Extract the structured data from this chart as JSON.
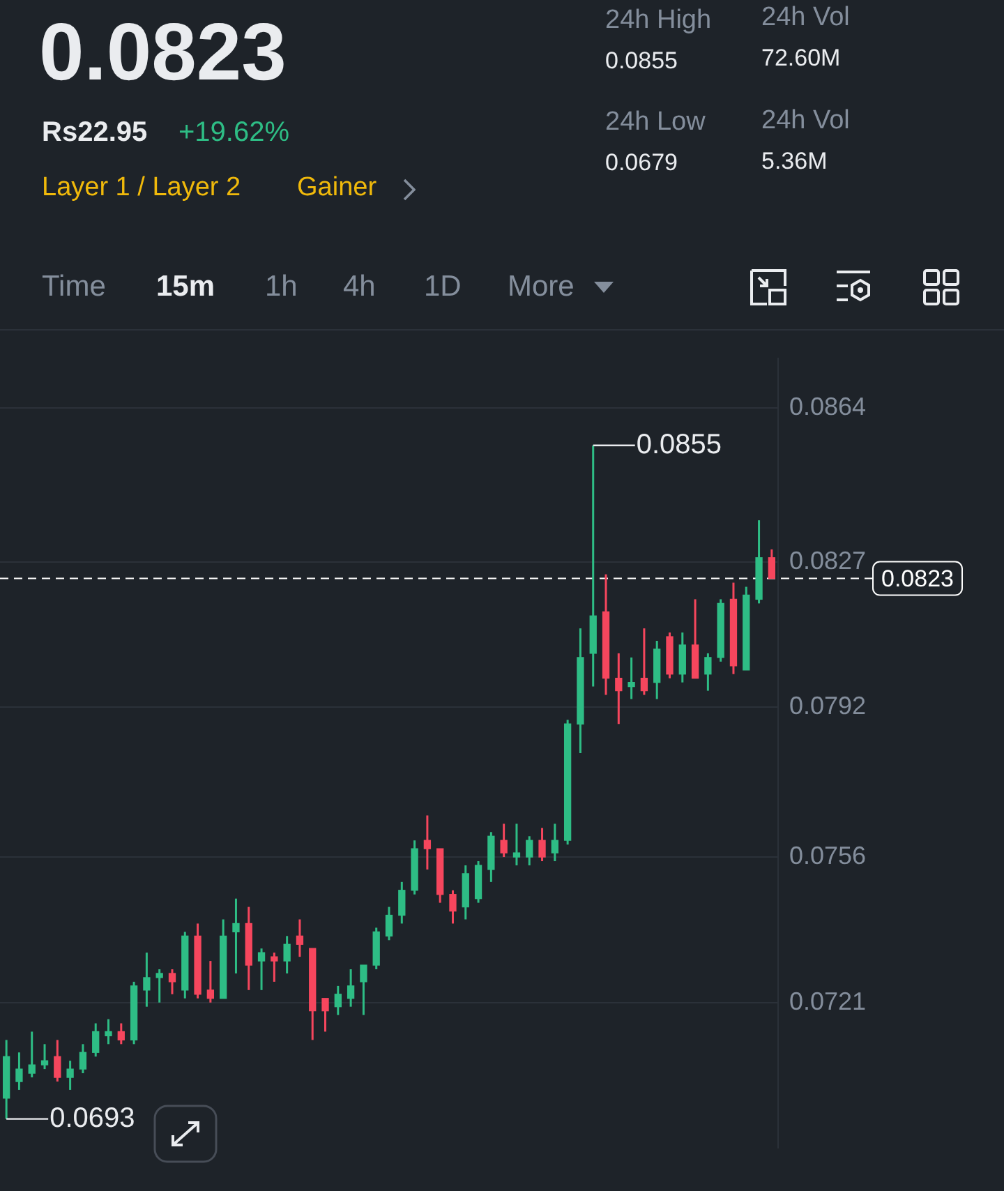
{
  "chart_data": {
    "type": "candlestick",
    "title": "0.0823",
    "subtitle": "Rs22.95",
    "annotations": [
      "+19.62%",
      "Layer 1 / Layer 2",
      "Gainer",
      "24h High",
      "0.0855",
      "24h Vol",
      "72.60M",
      "24h Low",
      "0.0679",
      "24h Vol",
      "5.36M",
      "Time",
      "15m",
      "1h",
      "4h",
      "1D",
      "More",
      "0.0855",
      "0.0693"
    ],
    "categories": [
      null,
      null,
      null,
      null,
      null,
      null,
      null,
      null,
      null,
      null,
      null,
      null,
      null,
      null,
      null,
      null,
      null,
      null,
      null,
      null,
      null,
      null,
      null,
      null,
      null,
      null,
      null,
      null,
      null,
      null,
      null,
      null,
      null,
      null,
      null,
      null,
      null,
      null,
      null,
      null,
      null,
      null,
      null,
      null,
      null,
      null,
      null,
      null,
      null,
      null,
      null,
      null,
      null,
      null,
      null,
      null,
      null,
      null,
      null,
      null,
      null
    ],
    "ohlc": [
      [
        0.0698,
        0.0712,
        0.0693,
        0.0708
      ],
      [
        0.0702,
        0.0709,
        0.07,
        0.0705
      ],
      [
        0.0704,
        0.0714,
        0.0703,
        0.0706
      ],
      [
        0.0706,
        0.0711,
        0.0705,
        0.0707
      ],
      [
        0.0708,
        0.0712,
        0.0702,
        0.0703
      ],
      [
        0.0703,
        0.0707,
        0.07,
        0.0705
      ],
      [
        0.0705,
        0.0711,
        0.0704,
        0.0709
      ],
      [
        0.0709,
        0.0716,
        0.0708,
        0.0714
      ],
      [
        0.0713,
        0.0717,
        0.0711,
        0.0714
      ],
      [
        0.0714,
        0.0716,
        0.0711,
        0.0712
      ],
      [
        0.0712,
        0.0726,
        0.0711,
        0.0725
      ],
      [
        0.0724,
        0.0733,
        0.072,
        0.0727
      ],
      [
        0.0727,
        0.0729,
        0.0721,
        0.0728
      ],
      [
        0.0728,
        0.0729,
        0.0723,
        0.0726
      ],
      [
        0.0724,
        0.0738,
        0.0722,
        0.0737
      ],
      [
        0.0737,
        0.074,
        0.0722,
        0.0723
      ],
      [
        0.0724,
        0.0731,
        0.0721,
        0.0722
      ],
      [
        0.0722,
        0.0741,
        0.0722,
        0.0737
      ],
      [
        0.0738,
        0.0746,
        0.0728,
        0.074
      ],
      [
        0.074,
        0.0744,
        0.0724,
        0.073
      ],
      [
        0.0731,
        0.0734,
        0.0724,
        0.0733
      ],
      [
        0.0732,
        0.0733,
        0.0726,
        0.0731
      ],
      [
        0.0731,
        0.0737,
        0.0728,
        0.0735
      ],
      [
        0.0737,
        0.0741,
        0.0732,
        0.0735
      ],
      [
        0.0734,
        0.0734,
        0.0712,
        0.0719
      ],
      [
        0.0722,
        0.0722,
        0.0714,
        0.0719
      ],
      [
        0.072,
        0.0725,
        0.0718,
        0.0723
      ],
      [
        0.0722,
        0.0729,
        0.072,
        0.0725
      ],
      [
        0.0726,
        0.073,
        0.0718,
        0.073
      ],
      [
        0.073,
        0.0739,
        0.0729,
        0.0738
      ],
      [
        0.0737,
        0.0744,
        0.0736,
        0.0742
      ],
      [
        0.0742,
        0.075,
        0.074,
        0.0748
      ],
      [
        0.0748,
        0.076,
        0.0747,
        0.0758
      ],
      [
        0.076,
        0.0766,
        0.0753,
        0.0758
      ],
      [
        0.0758,
        0.0758,
        0.0745,
        0.0747
      ],
      [
        0.0747,
        0.0748,
        0.074,
        0.0743
      ],
      [
        0.0744,
        0.0754,
        0.0741,
        0.0752
      ],
      [
        0.0746,
        0.0755,
        0.0745,
        0.0754
      ],
      [
        0.0753,
        0.0762,
        0.075,
        0.0761
      ],
      [
        0.076,
        0.0764,
        0.0756,
        0.0757
      ],
      [
        0.0756,
        0.0764,
        0.0754,
        0.0757
      ],
      [
        0.0756,
        0.0761,
        0.0754,
        0.076
      ],
      [
        0.076,
        0.0763,
        0.0755,
        0.0756
      ],
      [
        0.0757,
        0.0764,
        0.0755,
        0.076
      ],
      [
        0.076,
        0.0789,
        0.0759,
        0.0788
      ],
      [
        0.0788,
        0.0811,
        0.0781,
        0.0804
      ],
      [
        0.0805,
        0.0855,
        0.0797,
        0.0814
      ],
      [
        0.0815,
        0.0824,
        0.0795,
        0.0799
      ],
      [
        0.0799,
        0.0805,
        0.0788,
        0.0796
      ],
      [
        0.0797,
        0.0804,
        0.0794,
        0.0798
      ],
      [
        0.0799,
        0.0811,
        0.0795,
        0.0796
      ],
      [
        0.0798,
        0.0808,
        0.0794,
        0.0806
      ],
      [
        0.0809,
        0.081,
        0.0799,
        0.08
      ],
      [
        0.08,
        0.081,
        0.0798,
        0.0807
      ],
      [
        0.0807,
        0.0818,
        0.0799,
        0.0799
      ],
      [
        0.08,
        0.0805,
        0.0796,
        0.0804
      ],
      [
        0.0804,
        0.0818,
        0.0803,
        0.0817
      ],
      [
        0.0818,
        0.0822,
        0.08,
        0.0802
      ],
      [
        0.0801,
        0.0821,
        0.0801,
        0.0819
      ],
      [
        0.0818,
        0.0837,
        0.0817,
        0.0828
      ],
      [
        0.0828,
        0.083,
        0.0823,
        0.0823
      ]
    ],
    "colors": [
      "#2ebd85",
      "#2ebd85",
      "#2ebd85",
      "#2ebd85",
      "#f6465d",
      "#2ebd85",
      "#2ebd85",
      "#2ebd85",
      "#2ebd85",
      "#f6465d",
      "#2ebd85",
      "#2ebd85",
      "#2ebd85",
      "#f6465d",
      "#2ebd85",
      "#f6465d",
      "#f6465d",
      "#2ebd85",
      "#2ebd85",
      "#f6465d",
      "#2ebd85",
      "#f6465d",
      "#2ebd85",
      "#f6465d",
      "#f6465d",
      "#f6465d",
      "#2ebd85",
      "#2ebd85",
      "#2ebd85",
      "#2ebd85",
      "#2ebd85",
      "#2ebd85",
      "#2ebd85",
      "#f6465d",
      "#f6465d",
      "#f6465d",
      "#2ebd85",
      "#2ebd85",
      "#2ebd85",
      "#f6465d",
      "#2ebd85",
      "#2ebd85",
      "#f6465d",
      "#2ebd85",
      "#2ebd85",
      "#2ebd85",
      "#2ebd85",
      "#f6465d",
      "#f6465d",
      "#2ebd85",
      "#f6465d",
      "#2ebd85",
      "#f6465d",
      "#2ebd85",
      "#f6465d",
      "#2ebd85",
      "#2ebd85",
      "#f6465d",
      "#2ebd85",
      "#2ebd85",
      "#f6465d"
    ],
    "ylim": [
      0.0686,
      0.0876
    ],
    "yticks": [
      0.0721,
      0.0756,
      0.0792,
      0.0827,
      0.0864
    ],
    "grid": "y",
    "ref_lines": [
      {
        "axis": "y",
        "value": 0.0823,
        "label": "0.0823",
        "color": "#ffffff",
        "line_style": "dashed"
      }
    ]
  }
}
